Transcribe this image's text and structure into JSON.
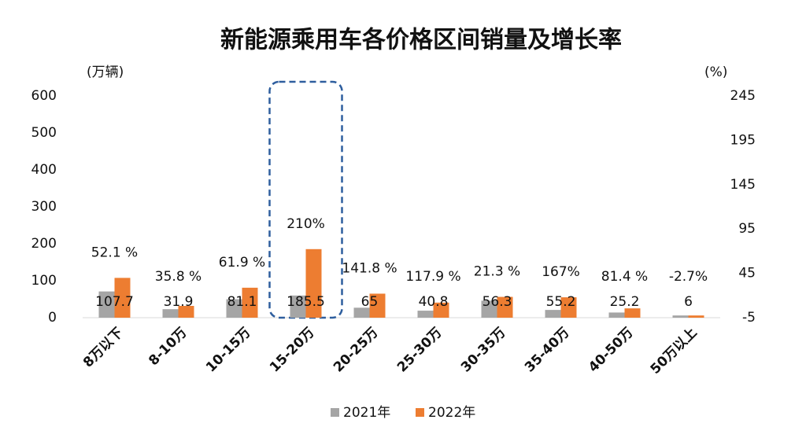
{
  "chart_data": {
    "type": "bar",
    "title": "新能源乘用车各价格区间销量及增长率",
    "y_label": "(万辆)",
    "y2_label": "(%)",
    "categories": [
      "8万以下",
      "8-10万",
      "10-15万",
      "15-20万",
      "20-25万",
      "25-30万",
      "30-35万",
      "35-40万",
      "40-50万",
      "50万以上"
    ],
    "series": [
      {
        "name": "2021年",
        "color": "#a5a5a5",
        "values": [
          71,
          23,
          50,
          60,
          27,
          19,
          46,
          21,
          14,
          6
        ]
      },
      {
        "name": "2022年",
        "color": "#ed7d31",
        "values": [
          107.7,
          31.9,
          81.1,
          185.5,
          65,
          40.8,
          56.3,
          55.2,
          25.2,
          6
        ]
      }
    ],
    "growth": {
      "axis": "y2",
      "values": [
        52.1,
        35.8,
        61.9,
        210,
        141.8,
        117.9,
        21.3,
        167,
        81.4,
        -2.7
      ],
      "value_labels": [
        "52.1 %",
        "35.8 %",
        "61.9 %",
        "210%",
        "141.8 %",
        "117.9 %",
        "21.3 %",
        "167%",
        "81.4 %",
        "-2.7%"
      ]
    },
    "ylim": [
      0,
      600
    ],
    "yticks": [
      0,
      100,
      200,
      300,
      400,
      500,
      600
    ],
    "y2lim": [
      -5,
      245
    ],
    "y2ticks": [
      -5,
      45,
      95,
      145,
      195,
      245
    ],
    "highlight": 3
  }
}
